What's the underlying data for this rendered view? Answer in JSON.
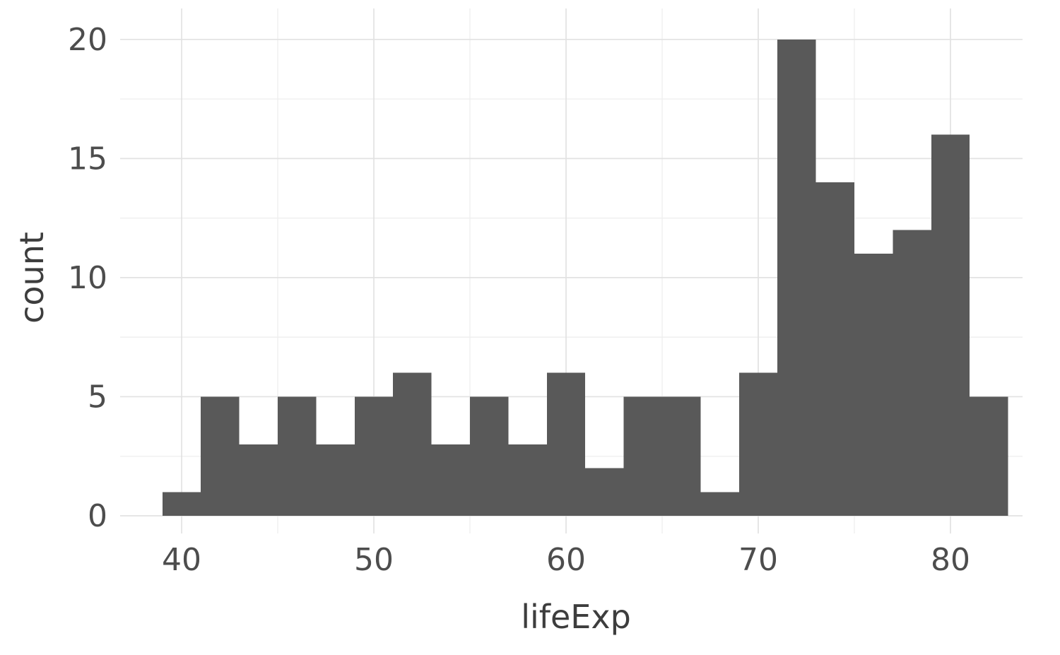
{
  "chart_data": {
    "type": "bar",
    "subtype": "histogram",
    "title": "",
    "xlabel": "lifeExp",
    "ylabel": "count",
    "bin_width": 2,
    "bins": [
      {
        "x0": 39,
        "x1": 41,
        "count": 1
      },
      {
        "x0": 41,
        "x1": 43,
        "count": 5
      },
      {
        "x0": 43,
        "x1": 45,
        "count": 3
      },
      {
        "x0": 45,
        "x1": 47,
        "count": 5
      },
      {
        "x0": 47,
        "x1": 49,
        "count": 3
      },
      {
        "x0": 49,
        "x1": 51,
        "count": 5
      },
      {
        "x0": 51,
        "x1": 53,
        "count": 6
      },
      {
        "x0": 53,
        "x1": 55,
        "count": 3
      },
      {
        "x0": 55,
        "x1": 57,
        "count": 5
      },
      {
        "x0": 57,
        "x1": 59,
        "count": 3
      },
      {
        "x0": 59,
        "x1": 61,
        "count": 6
      },
      {
        "x0": 61,
        "x1": 63,
        "count": 2
      },
      {
        "x0": 63,
        "x1": 65,
        "count": 5
      },
      {
        "x0": 65,
        "x1": 67,
        "count": 5
      },
      {
        "x0": 67,
        "x1": 69,
        "count": 1
      },
      {
        "x0": 69,
        "x1": 71,
        "count": 6
      },
      {
        "x0": 71,
        "x1": 73,
        "count": 20
      },
      {
        "x0": 73,
        "x1": 75,
        "count": 14
      },
      {
        "x0": 75,
        "x1": 77,
        "count": 11
      },
      {
        "x0": 77,
        "x1": 79,
        "count": 12
      },
      {
        "x0": 79,
        "x1": 81,
        "count": 16
      },
      {
        "x0": 81,
        "x1": 83,
        "count": 5
      }
    ],
    "x_ticks": [
      40,
      50,
      60,
      70,
      80
    ],
    "x_minor_ticks": [
      45,
      55,
      65,
      75
    ],
    "y_ticks": [
      0,
      5,
      10,
      15,
      20
    ],
    "y_minor_ticks": [
      2.5,
      7.5,
      12.5,
      17.5
    ],
    "xlim": [
      36.8,
      83.75
    ],
    "ylim": [
      0,
      21.3
    ],
    "grid": true,
    "legend_position": "none",
    "colors": {
      "bar_fill": "#595959",
      "grid_major": "#e2e2e2",
      "grid_minor": "#eeeeee",
      "tick_label": "#4d4d4d",
      "axis_title": "#3d3d3d",
      "background": "#ffffff"
    }
  }
}
